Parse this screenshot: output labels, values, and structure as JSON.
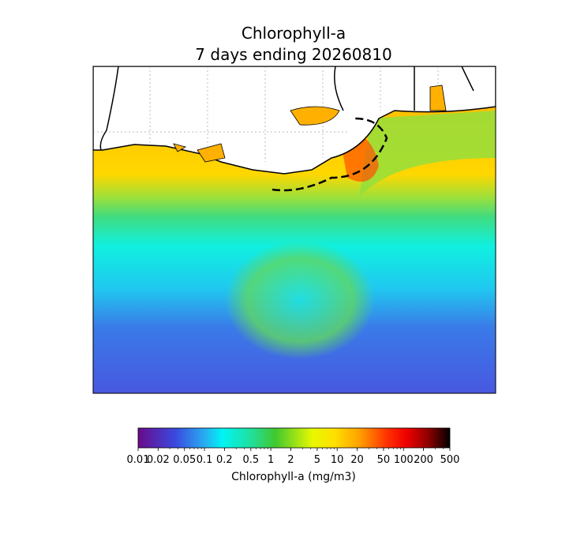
{
  "chart_data": {
    "type": "map",
    "title": "Chlorophyll-a",
    "subtitle": "7 days ending 20260810",
    "colorbar": {
      "label": "Chlorophyll-a (mg/m3)",
      "log": true,
      "lim": [
        0.01,
        500
      ],
      "ticks": [
        0.01,
        0.02,
        0.05,
        0.1,
        0.2,
        0.5,
        1,
        2,
        5,
        10,
        20,
        50,
        100,
        200,
        500
      ]
    }
  }
}
